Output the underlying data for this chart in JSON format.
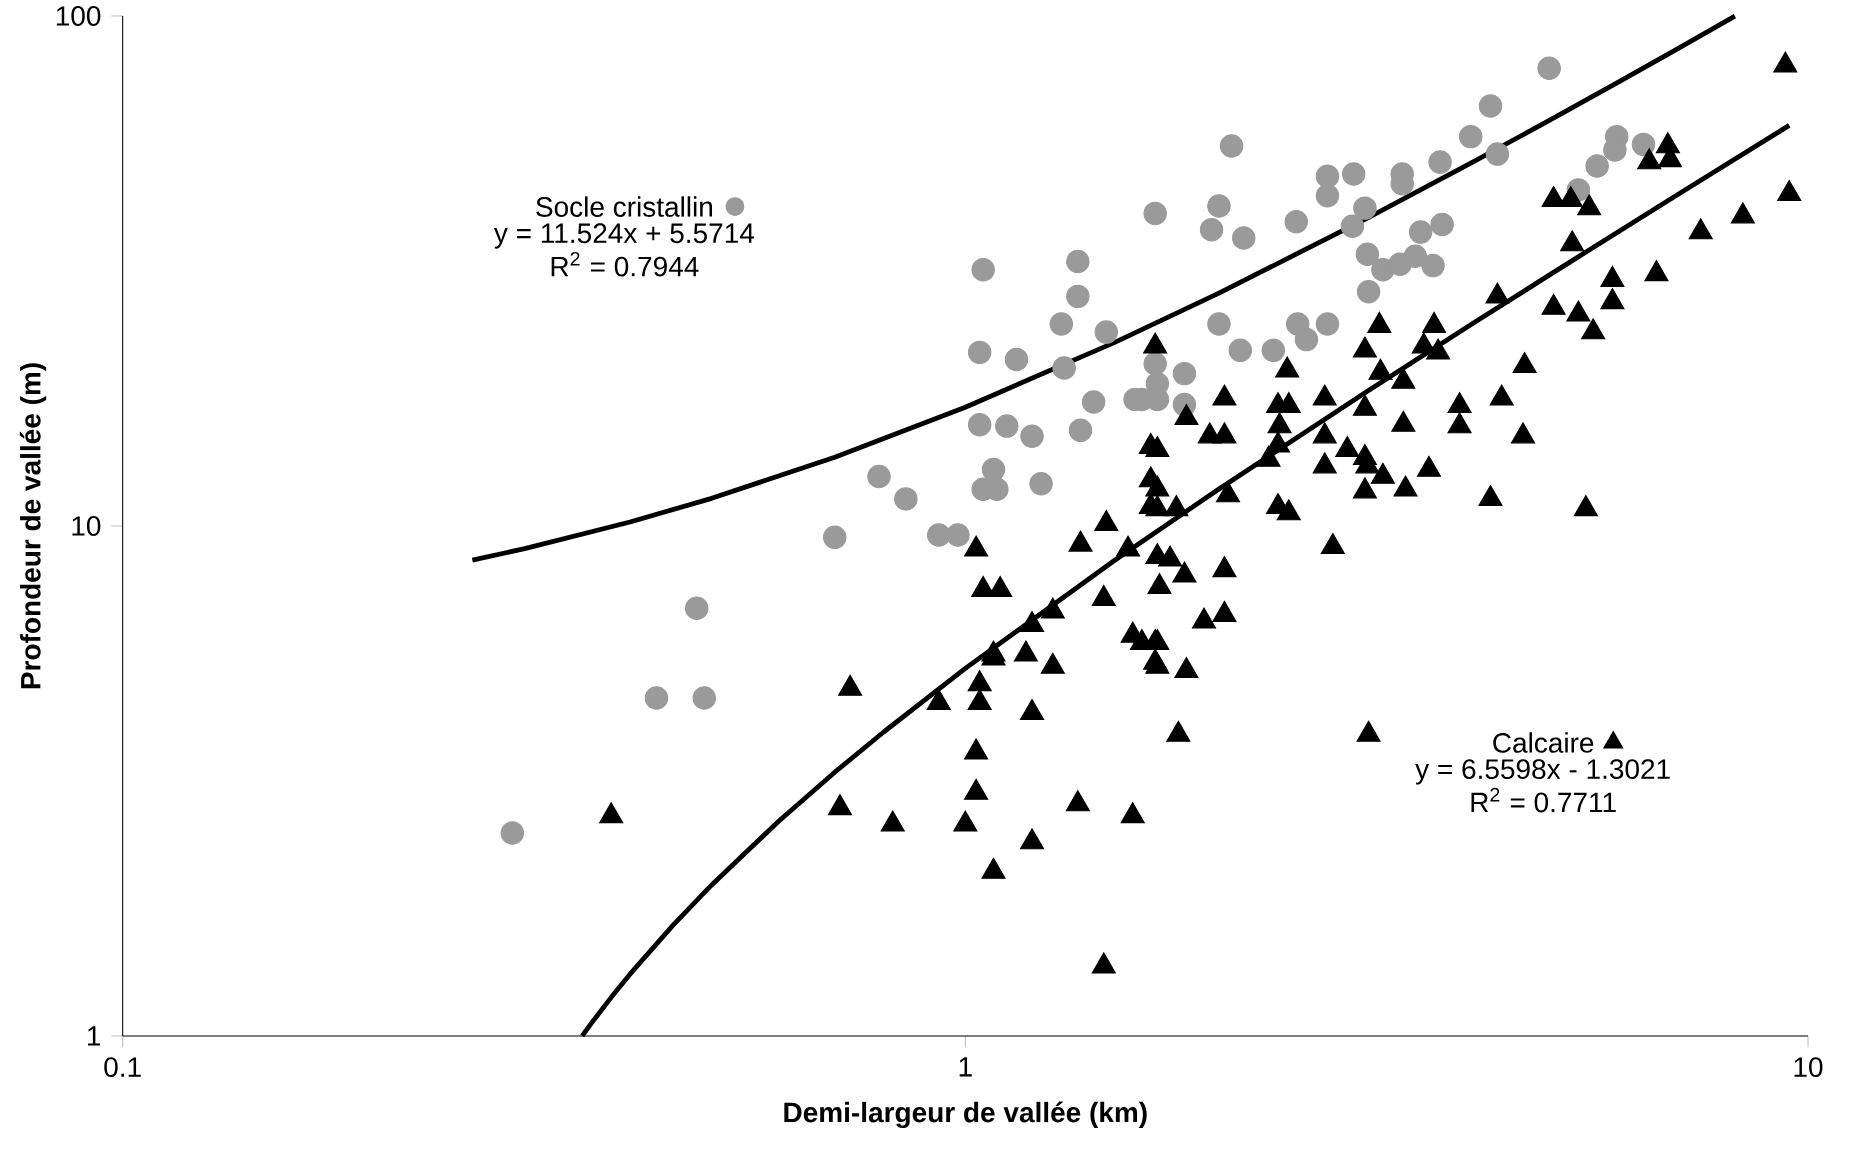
{
  "chart_data": {
    "type": "scatter",
    "xlabel": "Demi-largeur de vallée (km)",
    "ylabel": "Profondeur de vallée (m)",
    "log": "xy",
    "xlim": [
      0.1,
      10
    ],
    "ylim": [
      1,
      100
    ],
    "xticks": [
      0.1,
      1,
      10
    ],
    "yticks": [
      1,
      10,
      100
    ],
    "grid": false,
    "legend": "top right",
    "annotations": [
      "y = 11.524x + 5.5714",
      "R$^{2}$ = 0.7944",
      "y = 6.5598x - 1.3021",
      "R$^{2}$ = 0.7711"
    ],
    "series": [
      {
        "name": "Socle cristallin",
        "type": "scatter",
        "marker": "circle",
        "color": "#9a9a9a",
        "x": [
          0.29,
          0.43,
          0.49,
          0.48,
          1.05,
          1.36,
          1.36,
          1.3,
          1.47,
          1.04,
          1.15,
          1.31,
          1.42,
          1.59,
          1.37,
          1.12,
          1.2,
          1.04,
          0.79,
          0.85,
          1.08,
          1.05,
          1.09,
          1.23,
          0.7,
          0.93,
          0.98,
          1.68,
          4.93,
          4.2,
          3.98,
          4.28,
          2.07,
          2.69,
          2.89,
          3.3,
          3.3,
          3.66,
          2.69,
          5.93,
          6.38,
          5.62,
          5.9,
          5.34,
          2.0,
          1.96,
          2.14,
          2.47,
          2.98,
          2.88,
          3.47,
          3.68,
          3.0,
          3.13,
          3.28,
          3.42,
          3.59,
          3.01,
          2.0,
          2.48,
          2.54,
          2.69,
          2.12,
          2.32,
          1.68,
          1.82,
          1.69,
          1.69,
          1.82,
          1.62
        ],
        "values": [
          2.5,
          4.6,
          4.6,
          6.9,
          31.8,
          33,
          28.2,
          24.9,
          24,
          21.9,
          21.2,
          20.4,
          17.5,
          17.7,
          15.4,
          15.7,
          15.0,
          15.8,
          12.5,
          11.3,
          12.9,
          11.8,
          11.8,
          12.1,
          9.5,
          9.6,
          9.6,
          41,
          79,
          66.6,
          58,
          53.6,
          55.6,
          48.5,
          49,
          49,
          46.9,
          51.7,
          44.4,
          58,
          56,
          50.8,
          54.6,
          45.6,
          42.4,
          38.1,
          36.7,
          39.5,
          42,
          38.7,
          37.7,
          39,
          34.1,
          31.8,
          32.6,
          33.8,
          32.4,
          28.8,
          24.9,
          24.9,
          23.2,
          24.9,
          22.1,
          22.1,
          20.8,
          19.9,
          19,
          17.7,
          17.3,
          17.7
        ]
      },
      {
        "name": "Calcaire",
        "type": "scatter",
        "marker": "triangle",
        "color": "#000000",
        "x": [
          9.4,
          9.5,
          6.82,
          6.48,
          6.86,
          8.37,
          7.46,
          4.99,
          5.23,
          5.5,
          5.25,
          6.61,
          5.86,
          5.86,
          4.99,
          5.34,
          5.56,
          4.28,
          4.61,
          4.33,
          4.59,
          4.2,
          5.45,
          3.1,
          3.6,
          2.98,
          3.5,
          3.64,
          2.41,
          3.11,
          3.31,
          2.03,
          2.35,
          2.42,
          2.67,
          1.83,
          3.86,
          3.86,
          2.98,
          1.95,
          2.03,
          2.36,
          2.35,
          2.67,
          3.31,
          1.69,
          2.29,
          2.84,
          2.98,
          3.0,
          2.67,
          3.55,
          3.13,
          3.33,
          2.98,
          1.69,
          1.69,
          1.78,
          2.05,
          2.35,
          2.42,
          2.73,
          1.69,
          1.75,
          1.82,
          1.7,
          2.03,
          1.68,
          1.66,
          1.66,
          1.66,
          1.03,
          1.47,
          1.37,
          1.56,
          1.05,
          1.1,
          1.2,
          1.27,
          1.46,
          1.08,
          1.08,
          1.18,
          1.27,
          1.58,
          1.68,
          1.68,
          1.04,
          0.73,
          0.93,
          1.04,
          1.2,
          1.03,
          1.03,
          0.71,
          0.82,
          1.0,
          1.36,
          1.58,
          1.2,
          1.08,
          0.38,
          1.46,
          1.92,
          2.03,
          1.62,
          1.69,
          1.69,
          1.83,
          1.79,
          3.01
        ],
        "values": [
          80,
          44.8,
          55.6,
          51.7,
          52.2,
          40.5,
          37.7,
          43.6,
          43.6,
          42,
          35.7,
          31.2,
          30.4,
          27.5,
          26.8,
          26,
          24,
          28.2,
          20.6,
          17.8,
          15,
          11.3,
          10.8,
          24.7,
          24.7,
          22.1,
          22.5,
          21.9,
          20.2,
          20.0,
          19.2,
          17.8,
          17.2,
          17.2,
          17.8,
          16.3,
          17.2,
          15.7,
          17.0,
          15.0,
          15.0,
          15.7,
          14.4,
          15.0,
          15.8,
          14.1,
          13.5,
          14.1,
          13.6,
          13.1,
          13.1,
          12.9,
          12.5,
          11.8,
          11.7,
          11.8,
          10.8,
          10.8,
          11.5,
          10.9,
          10.6,
          9.1,
          8.7,
          8.6,
          8.0,
          7.6,
          8.2,
          22.5,
          14.3,
          12.3,
          10.9,
          9.0,
          10.1,
          9.2,
          9.0,
          7.5,
          7.5,
          6.4,
          6.8,
          7.2,
          5.6,
          5.5,
          5.6,
          5.3,
          6.1,
          5.9,
          5.4,
          4.9,
          4.8,
          4.5,
          4.5,
          4.3,
          3.6,
          3.0,
          2.8,
          2.6,
          2.6,
          2.85,
          2.7,
          2.4,
          2.1,
          2.7,
          1.37,
          6.5,
          6.7,
          5.9,
          5.9,
          5.3,
          5.2,
          3.9,
          3.9
        ]
      },
      {
        "type": "line",
        "color": "#000000",
        "x": [
          0.26,
          0.3,
          0.4,
          0.5,
          0.7,
          1,
          1.5,
          2,
          3,
          4,
          5,
          6,
          7,
          8.19
        ],
        "values": [
          8.568,
          9.028,
          10.18,
          11.33,
          13.64,
          17.1,
          22.86,
          28.62,
          40.14,
          51.67,
          63.19,
          74.72,
          86.24,
          99.95
        ]
      },
      {
        "type": "line",
        "color": "#000000",
        "x": [
          0.351,
          0.36,
          0.38,
          0.4,
          0.45,
          0.5,
          0.6,
          0.7,
          0.8,
          1,
          1.5,
          2,
          3,
          4,
          5,
          7,
          9.5
        ],
        "values": [
          1.0004,
          1.0594,
          1.1906,
          1.3218,
          1.6498,
          1.978,
          2.634,
          3.29,
          3.946,
          5.258,
          8.538,
          11.82,
          18.38,
          24.94,
          31.5,
          44.62,
          61.02
        ]
      }
    ]
  }
}
